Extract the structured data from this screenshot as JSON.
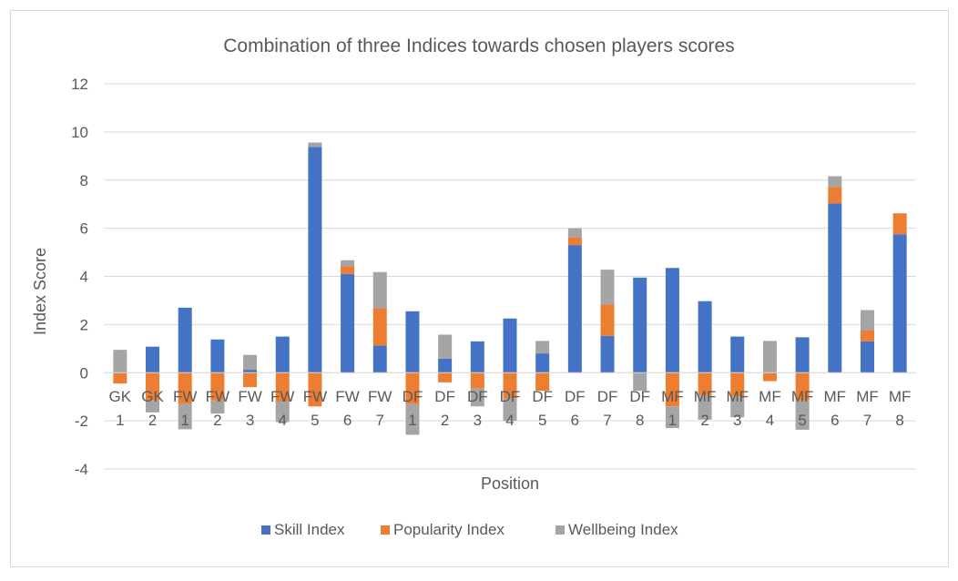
{
  "chart_data": {
    "type": "bar",
    "stacked": true,
    "title": "Combination of three Indices towards chosen players scores",
    "xlabel": "Position",
    "ylabel": "Index Score",
    "ylim": [
      -4,
      12
    ],
    "yticks": [
      -4,
      -2,
      0,
      2,
      4,
      6,
      8,
      10,
      12
    ],
    "grid": true,
    "legend_position": "bottom",
    "categories": [
      [
        "GK",
        "1"
      ],
      [
        "GK",
        "2"
      ],
      [
        "FW",
        "1"
      ],
      [
        "FW",
        "2"
      ],
      [
        "FW",
        "3"
      ],
      [
        "FW",
        "4"
      ],
      [
        "FW",
        "5"
      ],
      [
        "FW",
        "6"
      ],
      [
        "FW",
        "7"
      ],
      [
        "DF",
        "1"
      ],
      [
        "DF",
        "2"
      ],
      [
        "DF",
        "3"
      ],
      [
        "DF",
        "4"
      ],
      [
        "DF",
        "5"
      ],
      [
        "DF",
        "6"
      ],
      [
        "DF",
        "7"
      ],
      [
        "DF",
        "8"
      ],
      [
        "MF",
        "1"
      ],
      [
        "MF",
        "2"
      ],
      [
        "MF",
        "3"
      ],
      [
        "MF",
        "4"
      ],
      [
        "MF",
        "5"
      ],
      [
        "MF",
        "6"
      ],
      [
        "MF",
        "7"
      ],
      [
        "MF",
        "8"
      ]
    ],
    "series": [
      {
        "name": "Skill Index",
        "color": "#4472c4",
        "values": [
          0,
          1.08,
          2.7,
          1.38,
          0.12,
          1.5,
          9.38,
          4.1,
          1.13,
          2.55,
          0.58,
          1.3,
          2.25,
          0.8,
          5.3,
          1.53,
          3.95,
          4.35,
          2.97,
          1.5,
          0,
          1.47,
          7.03,
          1.3,
          5.75
        ]
      },
      {
        "name": "Popularity Index",
        "color": "#ed7d31",
        "values": [
          -0.45,
          -1.15,
          -1.3,
          -1.15,
          -0.6,
          -1.2,
          -1.4,
          0.32,
          1.55,
          -1.3,
          -0.4,
          -0.65,
          -1.05,
          -0.75,
          0.32,
          1.3,
          0,
          -1.4,
          -0.95,
          -1.0,
          -0.35,
          -1.15,
          0.68,
          0.45,
          0.87
        ]
      },
      {
        "name": "Wellbeing Index",
        "color": "#a5a5a5",
        "values": [
          0.95,
          -0.5,
          -1.05,
          -0.55,
          0.62,
          -0.85,
          0.18,
          0.25,
          1.5,
          -1.28,
          1.0,
          -0.75,
          -0.95,
          0.52,
          0.38,
          1.45,
          -0.75,
          -0.9,
          -1.0,
          -0.85,
          1.32,
          -1.22,
          0.45,
          0.85,
          0
        ]
      }
    ]
  }
}
